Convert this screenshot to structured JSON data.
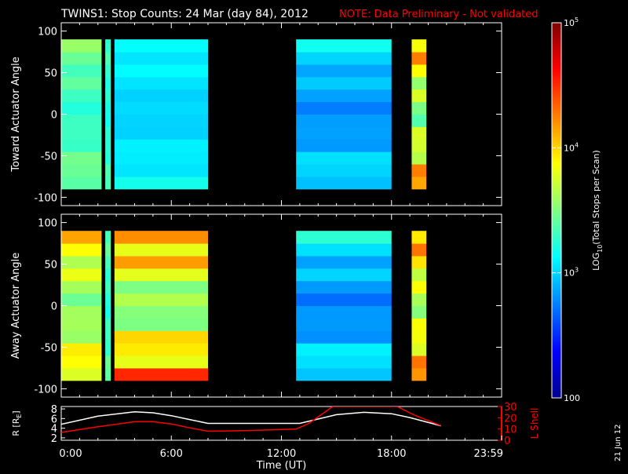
{
  "header": {
    "title": "TWINS1: Stop Counts: 24 Mar (day  84), 2012",
    "note": "NOTE: Data Preliminary - Not validated"
  },
  "side_date": "21 Jun 12",
  "colors": {
    "background": "#000000",
    "axes": "#ffffff",
    "note": "#ff0000",
    "r_line": "#ffffff",
    "l_shell_line": "#ff0000"
  },
  "chart_data": [
    {
      "type": "heatmap",
      "panel": "toward",
      "ylabel": "Toward Actuator Angle",
      "ylim": [
        -110,
        110
      ],
      "yticks": [
        100,
        50,
        0,
        -50,
        -100
      ],
      "xlim": [
        0,
        24
      ],
      "angle_range": [
        -90,
        90
      ],
      "log10_counts_range": [
        2,
        5
      ],
      "data_segments": [
        {
          "x": [
            0.0,
            2.2
          ],
          "log10_counts": [
            3.1,
            3.6
          ],
          "note": "high counts at negative angles near start"
        },
        {
          "x": [
            2.4,
            2.7
          ],
          "log10_counts": [
            3.1,
            3.4
          ]
        },
        {
          "x": [
            2.9,
            8.0
          ],
          "log10_counts": [
            2.9,
            3.2
          ]
        },
        {
          "x": [
            12.8,
            18.0
          ],
          "log10_counts": [
            2.6,
            3.2
          ]
        },
        {
          "x": [
            19.1,
            19.9
          ],
          "log10_counts": [
            3.0,
            4.5
          ]
        }
      ]
    },
    {
      "type": "heatmap",
      "panel": "away",
      "ylabel": "Away Actuator Angle",
      "ylim": [
        -110,
        110
      ],
      "yticks": [
        100,
        50,
        0,
        -50,
        -100
      ],
      "xlim": [
        0,
        24
      ],
      "angle_range": [
        -90,
        90
      ],
      "log10_counts_range": [
        2,
        5
      ],
      "data_segments": [
        {
          "x": [
            0.0,
            2.2
          ],
          "log10_counts": [
            3.2,
            4.2
          ]
        },
        {
          "x": [
            2.4,
            2.7
          ],
          "log10_counts": [
            3.1,
            3.5
          ]
        },
        {
          "x": [
            2.9,
            8.0
          ],
          "log10_counts": [
            3.0,
            4.6
          ],
          "note": "band near +75 deg"
        },
        {
          "x": [
            12.8,
            18.0
          ],
          "log10_counts": [
            2.5,
            3.3
          ]
        },
        {
          "x": [
            19.1,
            19.9
          ],
          "log10_counts": [
            3.2,
            4.5
          ]
        }
      ]
    },
    {
      "type": "line",
      "panel": "orbit",
      "xlabel": "Time (UT)",
      "xticks": [
        "0:00",
        "6:00",
        "12:00",
        "18:00",
        "23:59"
      ],
      "xlim": [
        0,
        24
      ],
      "ylabel_left": "R [R",
      "ylabel_left_sub": "E",
      "ylabel_left_end": "]",
      "yticks_left": [
        2,
        4,
        6,
        8
      ],
      "ylim_left": [
        1.5,
        8.5
      ],
      "ylabel_right": "L Shell",
      "yticks_right": [
        0,
        10,
        20,
        30
      ],
      "ylim_right": [
        0,
        30
      ],
      "series": [
        {
          "axis": "left",
          "color": "#ffffff",
          "x": [
            0,
            2,
            4,
            5,
            6,
            7,
            8,
            10,
            12,
            13,
            15,
            16.5,
            18,
            19,
            20.7
          ],
          "y": [
            4.8,
            6.5,
            7.4,
            7.2,
            6.6,
            5.8,
            5.0,
            5.0,
            5.0,
            5.0,
            6.8,
            7.3,
            7.0,
            6.2,
            4.5
          ]
        },
        {
          "axis": "right",
          "color": "#ff0000",
          "x": [
            0,
            2,
            4,
            5,
            6,
            7,
            8,
            10,
            12.8,
            13.5,
            14.8,
            16,
            17.5,
            18.3,
            19.3,
            20.7
          ],
          "y": [
            7,
            12,
            16.5,
            16.5,
            14.5,
            11,
            8,
            8.5,
            10,
            15,
            30,
            30,
            30,
            30,
            22,
            13
          ]
        }
      ]
    },
    {
      "type": "colorbar",
      "label": "LOG10(Total Stops per Scan)",
      "label_main": "LOG",
      "label_sub": "10",
      "label_rest": "(Total Stops per Scan)",
      "ticks": [
        {
          "value": 5,
          "label": "10",
          "sup": "5"
        },
        {
          "value": 4,
          "label": "10",
          "sup": "4"
        },
        {
          "value": 3,
          "label": "10",
          "sup": "3"
        },
        {
          "value": 2,
          "label": "100",
          "sup": ""
        }
      ],
      "range": [
        2,
        5
      ],
      "colormap": [
        "#00008f",
        "#0000ff",
        "#0080ff",
        "#00ffff",
        "#80ff80",
        "#ffff00",
        "#ff8000",
        "#ff0000",
        "#800000"
      ]
    }
  ]
}
